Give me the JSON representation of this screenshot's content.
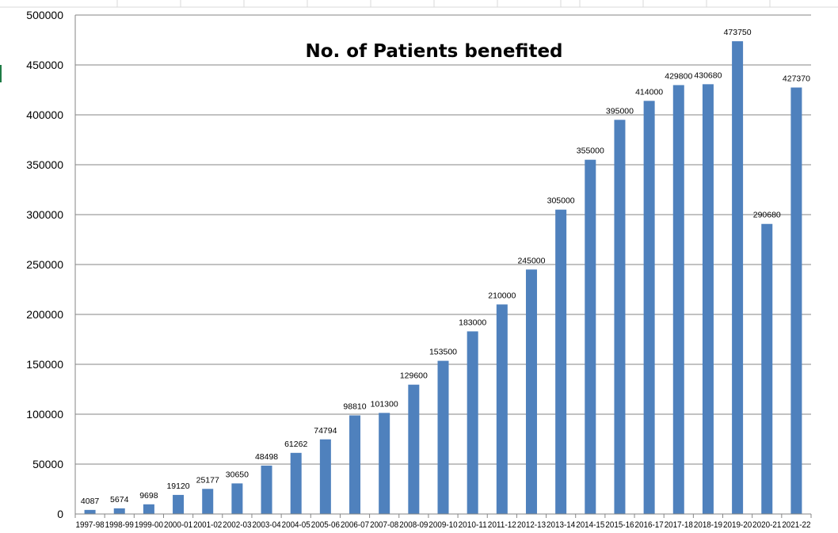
{
  "chart_data": {
    "type": "bar",
    "title": "No. of Patients benefited",
    "xlabel": "",
    "ylabel": "",
    "ylim": [
      0,
      500000
    ],
    "yticks": [
      0,
      50000,
      100000,
      150000,
      200000,
      250000,
      300000,
      350000,
      400000,
      450000,
      500000
    ],
    "grid": true,
    "legend": "none",
    "categories": [
      "1997-98",
      "1998-99",
      "1999-00",
      "2000-01",
      "2001-02",
      "2002-03",
      "2003-04",
      "2004-05",
      "2005-06",
      "2006-07",
      "2007-08",
      "2008-09",
      "2009-10",
      "2010-11",
      "2011-12",
      "2012-13",
      "2013-14",
      "2014-15",
      "2015-16",
      "2016-17",
      "2017-18",
      "2018-19",
      "2019-20",
      "2020-21",
      "2021-22"
    ],
    "values": [
      4087,
      5674,
      9698,
      19120,
      25177,
      30650,
      48498,
      61262,
      74794,
      98810,
      101300,
      129600,
      153500,
      183000,
      210000,
      245000,
      305000,
      355000,
      395000,
      414000,
      429800,
      430680,
      473750,
      290680,
      427370
    ],
    "bar_color": "#4f81bd",
    "grid_color": "#868686"
  }
}
